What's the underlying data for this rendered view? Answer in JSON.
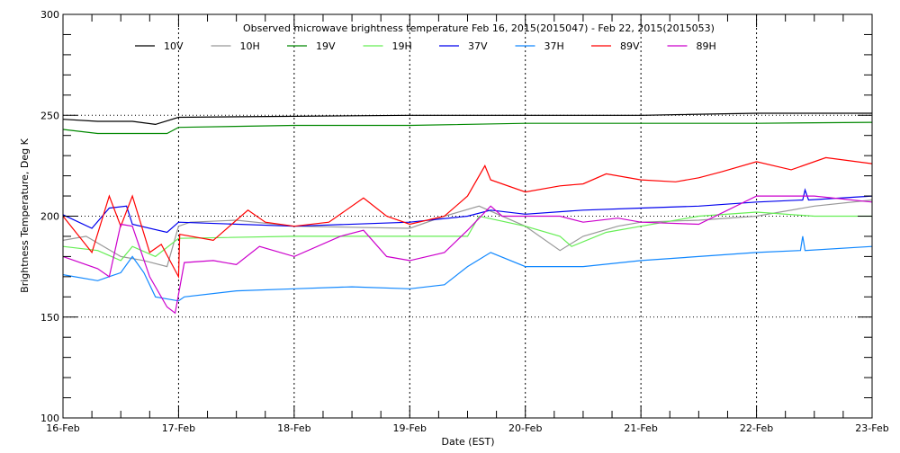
{
  "chart_data": {
    "type": "line",
    "title": "Observed microwave brightness temperature Feb 16, 2015(2015047) - Feb 22, 2015(2015053)",
    "xlabel": "Date (EST)",
    "ylabel": "Brightness Temperature, Deg K",
    "xlim": [
      "16-Feb",
      "23-Feb"
    ],
    "ylim": [
      100,
      300
    ],
    "x_tick_labels": [
      "16-Feb",
      "17-Feb",
      "18-Feb",
      "19-Feb",
      "20-Feb",
      "21-Feb",
      "22-Feb",
      "23-Feb"
    ],
    "y_tick_labels": [
      "100",
      "150",
      "200",
      "250",
      "300"
    ],
    "grid": "dotted at 150/200/250 K and daily",
    "legend_placement": "top",
    "series": [
      {
        "name": "10V",
        "color": "#000000",
        "x_days_from_16_Feb": [
          0,
          0.3,
          0.6,
          0.8,
          1,
          2,
          3,
          4,
          5,
          6,
          7
        ],
        "values": [
          248,
          247,
          247,
          245.5,
          249,
          249.5,
          250,
          250,
          250,
          251,
          251
        ]
      },
      {
        "name": "10H",
        "color": "#999999",
        "x_days_from_16_Feb": [
          0,
          0.2,
          0.5,
          0.7,
          0.9,
          1,
          1.1,
          1.5,
          2,
          3,
          3.3,
          3.6,
          4,
          4.3,
          4.5,
          4.8,
          5,
          5.5,
          6,
          6.5,
          7
        ],
        "values": [
          188,
          190,
          180,
          178,
          175,
          195,
          197,
          198,
          195,
          194,
          200,
          205,
          195,
          183,
          190,
          195,
          197,
          198,
          200,
          205,
          208
        ]
      },
      {
        "name": "19V",
        "color": "#008800",
        "x_days_from_16_Feb": [
          0,
          0.3,
          0.9,
          1,
          2,
          3,
          4,
          5,
          6,
          7
        ],
        "values": [
          243,
          241,
          241,
          244,
          245,
          245,
          246,
          246,
          246,
          246.5
        ]
      },
      {
        "name": "19H",
        "color": "#66ee55",
        "x_days_from_16_Feb": [
          0,
          0.3,
          0.5,
          0.6,
          0.8,
          1,
          2,
          3,
          3.3,
          3.5,
          3.6,
          4,
          4.3,
          4.4,
          4.7,
          5,
          5.5,
          6,
          6.5,
          7
        ],
        "values": [
          185,
          183,
          178,
          185,
          180,
          189,
          190,
          190,
          190,
          190,
          200,
          195,
          190,
          185,
          192,
          195,
          200,
          202,
          200,
          200
        ]
      },
      {
        "name": "37V",
        "color": "#0000ee",
        "x_days_from_16_Feb": [
          0,
          0.25,
          0.4,
          0.55,
          0.6,
          0.9,
          1,
          2,
          3,
          3.5,
          3.7,
          4,
          4.5,
          5,
          5.5,
          6,
          6.4,
          6.42,
          6.45,
          7
        ],
        "values": [
          200.7,
          194,
          204,
          205,
          196,
          192,
          197,
          195,
          197,
          200,
          203,
          201,
          203,
          204,
          205,
          207,
          208,
          213,
          208,
          210
        ]
      },
      {
        "name": "37H",
        "color": "#1188ff",
        "x_days_from_16_Feb": [
          0,
          0.3,
          0.5,
          0.6,
          0.7,
          0.8,
          1,
          1.05,
          1.5,
          2,
          2.5,
          3,
          3.3,
          3.5,
          3.7,
          4,
          4.5,
          5,
          5.5,
          6,
          6.38,
          6.4,
          6.42,
          7
        ],
        "values": [
          171,
          168,
          172,
          180,
          172,
          160,
          158,
          160,
          163,
          164,
          165,
          164,
          166,
          175,
          182,
          175,
          175,
          178,
          180,
          182,
          183,
          190,
          183,
          185
        ]
      },
      {
        "name": "89V",
        "color": "#ff0000",
        "x_days_from_16_Feb": [
          0,
          0.25,
          0.4,
          0.5,
          0.6,
          0.75,
          0.85,
          1,
          1.01,
          1.3,
          1.6,
          1.75,
          2,
          2.3,
          2.6,
          2.8,
          3,
          3.3,
          3.5,
          3.65,
          3.7,
          4,
          4.3,
          4.5,
          4.7,
          5,
          5.3,
          5.5,
          5.7,
          6,
          6.3,
          6.6,
          7
        ],
        "values": [
          200,
          182,
          210,
          195,
          210,
          182,
          186,
          170,
          191,
          188,
          203,
          197,
          195,
          197,
          209,
          200,
          196,
          200,
          210,
          225,
          218,
          212,
          215,
          216,
          221,
          218,
          217,
          219,
          222,
          227,
          223,
          229,
          226
        ]
      },
      {
        "name": "89H",
        "color": "#cc00cc",
        "x_days_from_16_Feb": [
          0,
          0.3,
          0.4,
          0.5,
          0.6,
          0.75,
          0.9,
          0.97,
          1.05,
          1.3,
          1.5,
          1.7,
          2,
          2.4,
          2.6,
          2.8,
          3,
          3.3,
          3.5,
          3.7,
          3.8,
          4,
          4.3,
          4.5,
          4.8,
          5,
          5.5,
          6,
          6.5,
          7
        ],
        "values": [
          180,
          174,
          170,
          196,
          195,
          170,
          155,
          152,
          177,
          178,
          176,
          185,
          180,
          190,
          193,
          180,
          178,
          182,
          193,
          205,
          200,
          200,
          200,
          197,
          199,
          197,
          196,
          210,
          210,
          207
        ]
      }
    ]
  }
}
